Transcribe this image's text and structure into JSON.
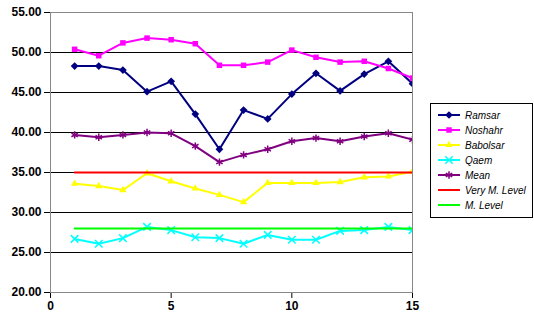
{
  "chart_data": {
    "type": "line",
    "x": [
      1,
      2,
      3,
      4,
      5,
      6,
      7,
      8,
      9,
      10,
      11,
      12,
      13,
      14,
      15
    ],
    "series": [
      {
        "name": "Ramsar",
        "color": "#000080",
        "marker": "diamond",
        "values": [
          48.3,
          48.3,
          47.8,
          45.1,
          46.4,
          42.3,
          37.9,
          42.8,
          41.7,
          44.8,
          47.4,
          45.2,
          47.3,
          48.9,
          46.1
        ]
      },
      {
        "name": "Noshahr",
        "color": "#ff00ff",
        "marker": "square",
        "values": [
          50.4,
          49.6,
          51.2,
          51.8,
          51.6,
          51.1,
          48.4,
          48.4,
          48.8,
          50.3,
          49.4,
          48.8,
          48.9,
          48.0,
          46.8
        ]
      },
      {
        "name": "Babolsar",
        "color": "#ffff00",
        "marker": "triangle",
        "values": [
          33.6,
          33.3,
          32.8,
          34.9,
          33.9,
          33.0,
          32.2,
          31.3,
          33.7,
          33.7,
          33.7,
          33.8,
          34.4,
          34.5,
          35.1
        ]
      },
      {
        "name": "Qaem",
        "color": "#00ffff",
        "marker": "x",
        "values": [
          26.7,
          26.1,
          26.8,
          28.2,
          27.8,
          26.9,
          26.8,
          26.1,
          27.2,
          26.6,
          26.6,
          27.7,
          27.8,
          28.2,
          27.8
        ]
      },
      {
        "name": "Mean",
        "color": "#800080",
        "marker": "star",
        "values": [
          39.7,
          39.4,
          39.7,
          40.0,
          39.9,
          38.3,
          36.3,
          37.2,
          37.9,
          38.9,
          39.3,
          38.9,
          39.5,
          39.9,
          39.1
        ]
      },
      {
        "name": "Very M. Level",
        "color": "#ff0000",
        "values": [
          35,
          35,
          35,
          35,
          35,
          35,
          35,
          35,
          35,
          35,
          35,
          35,
          35,
          35,
          35
        ]
      },
      {
        "name": "M. Level",
        "color": "#00ff00",
        "values": [
          28,
          28,
          28,
          28,
          28,
          28,
          28,
          28,
          28,
          28,
          28,
          28,
          28,
          28,
          28
        ]
      }
    ],
    "xlim": [
      0,
      15
    ],
    "xticks": [
      0,
      5,
      10,
      15
    ],
    "ylim": [
      20,
      55
    ],
    "yticks": [
      {
        "value": 20,
        "label": "20.00"
      },
      {
        "value": 25,
        "label": "25.00"
      },
      {
        "value": 30,
        "label": "30.00"
      },
      {
        "value": 35,
        "label": "35.00"
      },
      {
        "value": 40,
        "label": "40.00"
      },
      {
        "value": 45,
        "label": "45.00"
      },
      {
        "value": 50,
        "label": "50.00"
      },
      {
        "value": 55,
        "label": "55.00"
      }
    ],
    "grid": true,
    "legend": "right"
  }
}
